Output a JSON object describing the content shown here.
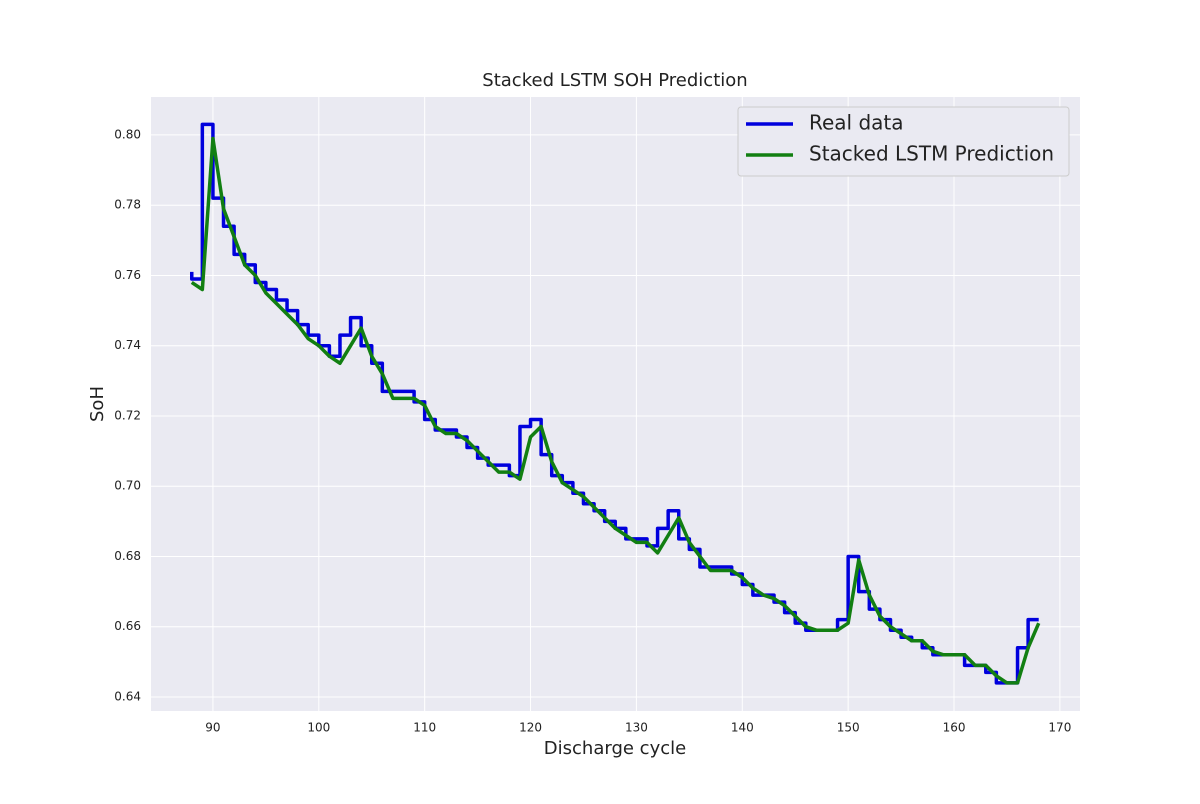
{
  "chart_data": {
    "type": "line",
    "title": "Stacked LSTM SOH Prediction",
    "x_label": "Discharge cycle",
    "y_label": "SoH",
    "x": [
      88,
      89,
      90,
      91,
      92,
      93,
      94,
      95,
      96,
      97,
      98,
      99,
      100,
      101,
      102,
      103,
      104,
      105,
      106,
      107,
      108,
      109,
      110,
      111,
      112,
      113,
      114,
      115,
      116,
      117,
      118,
      119,
      120,
      121,
      122,
      123,
      124,
      125,
      126,
      127,
      128,
      129,
      130,
      131,
      132,
      133,
      134,
      135,
      136,
      137,
      138,
      139,
      140,
      141,
      142,
      143,
      144,
      145,
      146,
      147,
      148,
      149,
      150,
      151,
      152,
      153,
      154,
      155,
      156,
      157,
      158,
      159,
      160,
      161,
      162,
      163,
      164,
      165,
      166,
      167,
      168
    ],
    "series": [
      {
        "name": "Real data",
        "color": "#0000dd",
        "drawstyle": "steps-pre",
        "values": [
          0.761,
          0.759,
          0.803,
          0.782,
          0.774,
          0.766,
          0.763,
          0.758,
          0.756,
          0.753,
          0.75,
          0.746,
          0.743,
          0.74,
          0.737,
          0.743,
          0.748,
          0.74,
          0.735,
          0.727,
          0.727,
          0.727,
          0.724,
          0.719,
          0.716,
          0.716,
          0.714,
          0.711,
          0.708,
          0.706,
          0.706,
          0.703,
          0.717,
          0.719,
          0.709,
          0.703,
          0.701,
          0.698,
          0.695,
          0.693,
          0.69,
          0.688,
          0.685,
          0.685,
          0.683,
          0.688,
          0.693,
          0.685,
          0.682,
          0.677,
          0.677,
          0.677,
          0.675,
          0.672,
          0.669,
          0.669,
          0.667,
          0.664,
          0.661,
          0.659,
          0.659,
          0.659,
          0.662,
          0.68,
          0.67,
          0.665,
          0.662,
          0.659,
          0.657,
          0.656,
          0.654,
          0.652,
          0.652,
          0.652,
          0.649,
          0.649,
          0.647,
          0.644,
          0.644,
          0.654,
          0.662
        ]
      },
      {
        "name": "Stacked LSTM Prediction",
        "color": "#127f12",
        "drawstyle": "default",
        "values": [
          0.758,
          0.756,
          0.799,
          0.779,
          0.771,
          0.763,
          0.76,
          0.755,
          0.752,
          0.749,
          0.746,
          0.742,
          0.74,
          0.737,
          0.735,
          0.74,
          0.745,
          0.737,
          0.732,
          0.725,
          0.725,
          0.725,
          0.723,
          0.717,
          0.715,
          0.715,
          0.713,
          0.71,
          0.707,
          0.704,
          0.704,
          0.702,
          0.714,
          0.717,
          0.707,
          0.701,
          0.699,
          0.697,
          0.694,
          0.691,
          0.688,
          0.686,
          0.684,
          0.684,
          0.681,
          0.686,
          0.691,
          0.684,
          0.68,
          0.676,
          0.676,
          0.676,
          0.674,
          0.671,
          0.669,
          0.668,
          0.666,
          0.663,
          0.66,
          0.659,
          0.659,
          0.659,
          0.661,
          0.679,
          0.669,
          0.663,
          0.66,
          0.658,
          0.656,
          0.656,
          0.653,
          0.652,
          0.652,
          0.652,
          0.649,
          0.649,
          0.646,
          0.644,
          0.644,
          0.654,
          0.661
        ]
      }
    ],
    "xlim": [
      84.15,
      171.9
    ],
    "ylim": [
      0.636,
      0.8108
    ],
    "xticks": [
      90,
      100,
      110,
      120,
      130,
      140,
      150,
      160,
      170
    ],
    "yticks": [
      0.64,
      0.66,
      0.68,
      {
        "value": 0.7,
        "label": "0.70"
      },
      0.72,
      0.74,
      0.76,
      0.78,
      {
        "value": 0.8,
        "label": "0.80"
      }
    ],
    "grid": true,
    "legend": "upper right"
  }
}
